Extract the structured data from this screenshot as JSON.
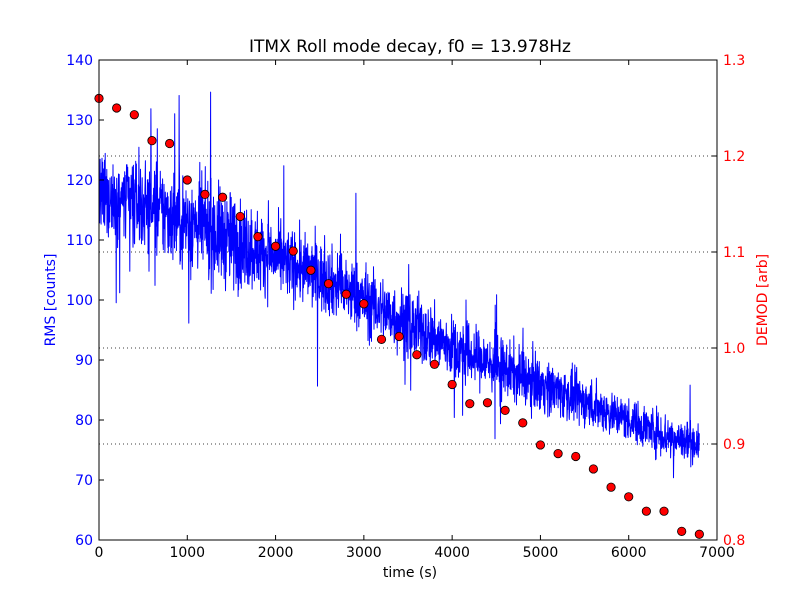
{
  "chart_data": {
    "type": "line",
    "title": "ITMX Roll mode decay, f0 = 13.978Hz",
    "xlabel": "time (s)",
    "ylabel": "RMS [counts]",
    "y2label": "DEMOD [arb]",
    "xlim": [
      0,
      7000
    ],
    "ylim": [
      60,
      140
    ],
    "y2lim": [
      0.8,
      1.3
    ],
    "x_ticks": [
      "0",
      "1000",
      "2000",
      "3000",
      "4000",
      "5000",
      "6000",
      "7000"
    ],
    "y_ticks": [
      "60",
      "70",
      "80",
      "90",
      "100",
      "110",
      "120",
      "130",
      "140"
    ],
    "y2_ticks": [
      "0.8",
      "0.9",
      "1.0",
      "1.1",
      "1.2",
      "1.3"
    ],
    "grid": "dotted horizontal lines at right-axis ticks",
    "colors": {
      "left_axis": "#0000ff",
      "right_axis": "#ff0000",
      "rms_line": "#0000ff",
      "demod_marker": "#ff0000"
    },
    "series": [
      {
        "axis": "left",
        "style": "line",
        "trend": {
          "x": [
            0,
            500,
            1000,
            1500,
            2000,
            2500,
            3000,
            3500,
            4000,
            4500,
            5000,
            5500,
            6000,
            6500,
            6800
          ],
          "y": [
            117,
            116,
            113,
            110,
            107,
            104,
            100,
            96,
            92,
            89,
            86,
            83,
            80,
            77,
            76
          ]
        },
        "spread": {
          "x": [
            0,
            1000,
            1500,
            2000,
            3000,
            4000,
            5000,
            6000,
            6500,
            6800
          ],
          "y": [
            6,
            7,
            7,
            5,
            5,
            4.5,
            4,
            3,
            3.5,
            2.5
          ]
        }
      },
      {
        "axis": "right",
        "style": "markers",
        "x": [
          0,
          200,
          400,
          600,
          800,
          1000,
          1200,
          1400,
          1600,
          1800,
          2000,
          2200,
          2400,
          2600,
          2800,
          3000,
          3200,
          3400,
          3600,
          3800,
          4000,
          4200,
          4400,
          4600,
          4800,
          5000,
          5200,
          5400,
          5600,
          5800,
          6000,
          6200,
          6400,
          6600,
          6800
        ],
        "y": [
          1.26,
          1.25,
          1.243,
          1.216,
          1.213,
          1.175,
          1.16,
          1.157,
          1.137,
          1.116,
          1.106,
          1.101,
          1.081,
          1.067,
          1.056,
          1.046,
          1.009,
          1.012,
          0.993,
          0.983,
          0.962,
          0.942,
          0.943,
          0.935,
          0.922,
          0.899,
          0.89,
          0.887,
          0.874,
          0.855,
          0.845,
          0.83,
          0.83,
          0.809,
          0.806
        ]
      }
    ]
  }
}
